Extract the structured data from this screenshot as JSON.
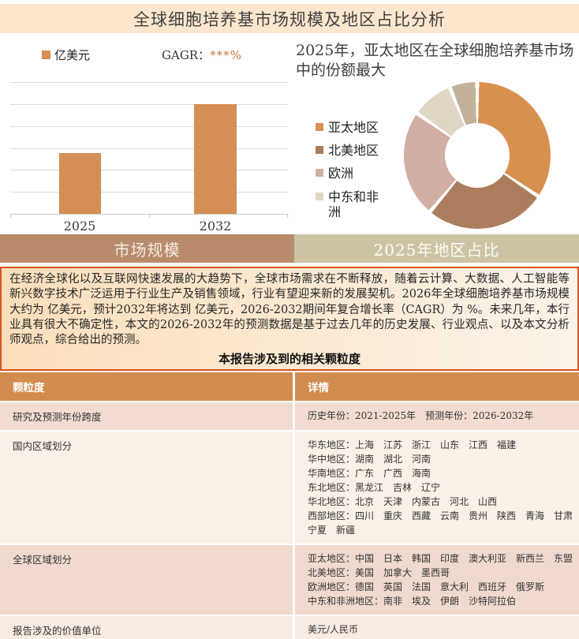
{
  "header": {
    "title": "全球细胞培养基市场规模及地区占比分析"
  },
  "chart_data": [
    {
      "type": "bar",
      "series_label": "亿美元",
      "annotation_label": "GAGR：",
      "annotation_value": "***%",
      "categories": [
        "2025",
        "2032"
      ],
      "values": [
        46,
        83
      ],
      "ylim": [
        0,
        100
      ],
      "value_labels_masked": true,
      "bar_color": "#D58E55",
      "grid": true
    },
    {
      "type": "donut",
      "title": "2025年，亚太地区在全球细胞培养基市场中的份额最大",
      "segments": [
        {
          "label": "亚太地区",
          "value_pct": 34.4,
          "color": "#D8904F"
        },
        {
          "label": "北美地区",
          "value_pct": 26.7,
          "color": "#AC7D5D"
        },
        {
          "label": "欧洲",
          "value_pct": 23.6,
          "color": "#D1AFA4"
        },
        {
          "label": "中东和非洲",
          "value_pct": 9.2,
          "color": "#DFD6C4"
        },
        {
          "label": "",
          "value_pct": 6.1,
          "color": "#C2B29A"
        }
      ],
      "legend_position": "left",
      "hole_ratio": 0.44
    }
  ],
  "tabs": [
    {
      "label": "市场规模"
    },
    {
      "label": "2025年地区占比"
    }
  ],
  "summary": {
    "paragraph": "在经济全球化以及互联网快速发展的大趋势下，全球市场需求在不断释放，随着云计算、大数据、人工智能等新兴数字技术广泛运用于行业生产及销售领域，行业有望迎来新的发展契机。2026年全球细胞培养基市场规模大约为 亿美元，预计2032年将达到 亿美元，2026-2032期间年复合增长率（CAGR）为 %。未来几年，本行业具有很大不确定性，本文的2026-2032年的预测数据是基于过去几年的历史发展、行业观点、以及本文分析师观点，综合给出的预测。",
    "granularity_heading": "本报告涉及到的相关颗粒度"
  },
  "table": {
    "headers": [
      "颗粒度",
      "详情"
    ],
    "rows": [
      {
        "label": "研究及预测年份跨度",
        "detail": "历史年份：2021-2025年　预测年份：2026-2032年"
      },
      {
        "label": "国内区域划分",
        "detail": "华东地区：上海　江苏　浙江　山东　江西　福建\n华中地区：湖南　湖北　河南\n华南地区：广东　广西　海南\n东北地区：黑龙江　吉林　辽宁\n华北地区：北京　天津　内蒙古　河北　山西\n西部地区：四川　重庆　西藏　云南　贵州　陕西　青海　甘肃　宁夏　新疆"
      },
      {
        "label": "全球区域划分",
        "detail": "亚太地区：中国　日本　韩国　印度　澳大利亚　新西兰　东盟\n北美地区：美国　加拿大　墨西哥\n欧洲地区：德国　英国　法国　意大利　西班牙　俄罗斯\n中东和非洲地区：南非　埃及　伊朗　沙特阿拉伯"
      },
      {
        "label": "报告涉及的价值单位",
        "detail": "美元/人民币"
      }
    ]
  },
  "colors": {
    "header_bg": "#FCE6CE",
    "bar": "#D58E55",
    "cagr_accent": "#BE7B44",
    "tab_left_bg": "#B98B6D",
    "tab_right_bg": "#CBC3A4",
    "table_header_bg": "#D28C4E",
    "summary_border": "#D9531E",
    "row_bgs": [
      "#F2DCD2",
      "#F9F0E7",
      "#F0DACF",
      "#F8EBE2"
    ]
  }
}
